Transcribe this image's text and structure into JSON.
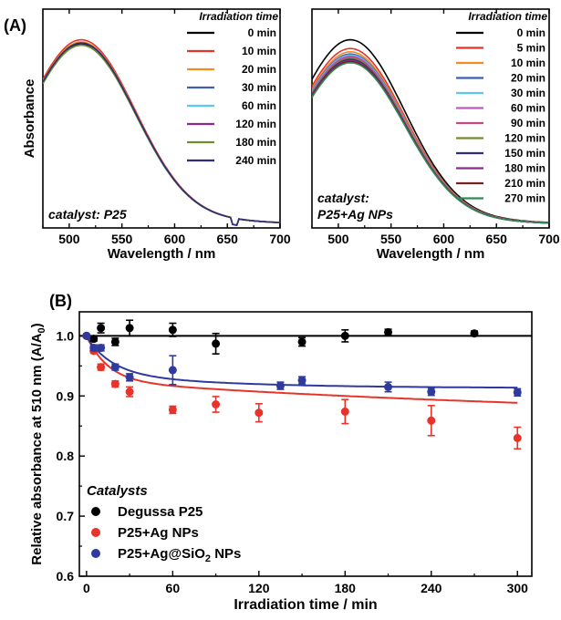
{
  "panel_labels": {
    "a": "(A)",
    "b": "(B)"
  },
  "chart_data": [
    {
      "type": "line",
      "panel": "(A) left",
      "xlabel": "Wavelength / nm",
      "ylabel": "Absorbance",
      "xlim": [
        475,
        700
      ],
      "xticks": [
        500,
        550,
        600,
        650,
        700
      ],
      "y_ticks_shown": false,
      "legend_title": "Irradiation time",
      "legend_position": "top-right",
      "annotation": "catalyst: P25",
      "series": [
        {
          "name": "0 min",
          "color": "#000000",
          "peak": 0.84
        },
        {
          "name": "10 min",
          "color": "#e8332a",
          "peak": 0.86
        },
        {
          "name": "20 min",
          "color": "#f28c1e",
          "peak": 0.85
        },
        {
          "name": "30 min",
          "color": "#3f5fb5",
          "peak": 0.845
        },
        {
          "name": "60 min",
          "color": "#5bc8ec",
          "peak": 0.835
        },
        {
          "name": "120 min",
          "color": "#8b2a8c",
          "peak": 0.845
        },
        {
          "name": "180 min",
          "color": "#6f8f2a",
          "peak": 0.835
        },
        {
          "name": "240 min",
          "color": "#2d2f78",
          "peak": 0.845
        }
      ]
    },
    {
      "type": "line",
      "panel": "(A) right",
      "xlabel": "Wavelength / nm",
      "ylabel": "",
      "xlim": [
        475,
        700
      ],
      "xticks": [
        500,
        550,
        600,
        650,
        700
      ],
      "y_ticks_shown": false,
      "legend_title": "Irradiation time",
      "legend_position": "top-right",
      "annotation": [
        "catalyst:",
        "P25+Ag NPs"
      ],
      "series": [
        {
          "name": "0 min",
          "color": "#000000",
          "peak": 0.86
        },
        {
          "name": "5 min",
          "color": "#e8332a",
          "peak": 0.82
        },
        {
          "name": "10 min",
          "color": "#f28c1e",
          "peak": 0.805
        },
        {
          "name": "20 min",
          "color": "#3f5fb5",
          "peak": 0.795
        },
        {
          "name": "30 min",
          "color": "#5bc8ec",
          "peak": 0.79
        },
        {
          "name": "60 min",
          "color": "#c05ac0",
          "peak": 0.785
        },
        {
          "name": "90 min",
          "color": "#c04a8a",
          "peak": 0.78
        },
        {
          "name": "120 min",
          "color": "#6f8f2a",
          "peak": 0.775
        },
        {
          "name": "150 min",
          "color": "#2d2f78",
          "peak": 0.77
        },
        {
          "name": "180 min",
          "color": "#8b2a8c",
          "peak": 0.765
        },
        {
          "name": "210 min",
          "color": "#7a1e1e",
          "peak": 0.76
        },
        {
          "name": "270 min",
          "color": "#2e8b57",
          "peak": 0.755
        }
      ]
    },
    {
      "type": "scatter",
      "panel": "(B)",
      "xlabel": "Irradiation time / min",
      "ylabel": "Relative absorbance at 510 nm (A/A",
      "ylabel_sub": "0",
      "ylabel_end": ")",
      "xlim": [
        -5,
        310
      ],
      "ylim": [
        0.6,
        1.04
      ],
      "xticks": [
        0,
        60,
        120,
        180,
        240,
        300
      ],
      "yticks": [
        0.6,
        0.7,
        0.8,
        0.9,
        1.0
      ],
      "ytick_labels": [
        "0.6",
        "0.7",
        "0.8",
        "0.9",
        "1.0"
      ],
      "grid": false,
      "legend_title": "Catalysts",
      "legend_position": "bottom-left",
      "series": [
        {
          "name": "Degussa P25",
          "color": "#000000",
          "x": [
            0,
            5,
            10,
            20,
            30,
            60,
            90,
            150,
            180,
            210,
            270
          ],
          "y": [
            1.0,
            0.995,
            1.013,
            0.99,
            1.013,
            1.01,
            0.987,
            0.99,
            1.0,
            1.006,
            1.004
          ],
          "err": [
            0.002,
            0.004,
            0.008,
            0.006,
            0.013,
            0.011,
            0.017,
            0.007,
            0.01,
            0.005,
            0.004
          ],
          "fit": {
            "type": "constant",
            "value": 1.0
          }
        },
        {
          "name": "P25+Ag NPs",
          "color": "#e8332a",
          "x": [
            0,
            5,
            10,
            20,
            30,
            60,
            90,
            120,
            180,
            240,
            300
          ],
          "y": [
            1.0,
            0.975,
            0.948,
            0.92,
            0.907,
            0.877,
            0.886,
            0.872,
            0.874,
            0.859,
            0.83
          ],
          "err": [
            0.002,
            0.004,
            0.005,
            0.005,
            0.008,
            0.006,
            0.013,
            0.015,
            0.02,
            0.025,
            0.018
          ],
          "fit": {
            "type": "exp",
            "a": 0.075,
            "tau": 15,
            "b": 0.069,
            "tau2": 400,
            "c": 0.856
          }
        },
        {
          "name": "P25+Ag@SiO",
          "name_sub": "2",
          "name_end": " NPs",
          "color": "#2e3a9e",
          "x": [
            0,
            5,
            10,
            20,
            30,
            60,
            135,
            150,
            210,
            240,
            300
          ],
          "y": [
            1.0,
            0.98,
            0.98,
            0.948,
            0.931,
            0.943,
            0.917,
            0.926,
            0.915,
            0.907,
            0.906
          ],
          "err": [
            0.002,
            0.005,
            0.005,
            0.005,
            0.006,
            0.024,
            0.006,
            0.006,
            0.008,
            0.006,
            0.006
          ],
          "fit": {
            "type": "exp",
            "a": 0.06,
            "tau": 18,
            "b": 0.025,
            "tau2": 90,
            "c": 0.913
          }
        }
      ]
    }
  ]
}
